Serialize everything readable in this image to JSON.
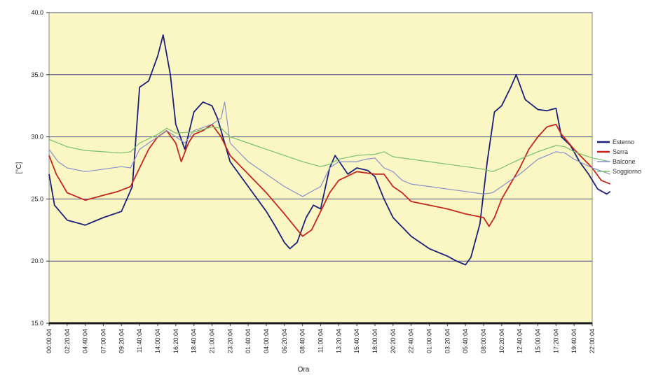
{
  "chart_data": {
    "type": "line",
    "xlabel": "Ora",
    "ylabel": "[°C]",
    "ylim": [
      15.0,
      40.0
    ],
    "y_ticks": [
      "15.0",
      "20.0",
      "25.0",
      "30.0",
      "35.0",
      "40.0"
    ],
    "grid": true,
    "legend_position": "right",
    "plot_background": "#fbf7c4",
    "x_tick_labels": [
      "00:00:04",
      "02:20:04",
      "04:40:04",
      "07:00:04",
      "09:20:04",
      "11:40:04",
      "14:00:04",
      "16:20:04",
      "18:40:04",
      "21:00:04",
      "23:20:04",
      "01:40:04",
      "04:00:04",
      "06:20:04",
      "08:40:04",
      "11:00:04",
      "13:20:04",
      "15:40:04",
      "18:00:04",
      "20:20:04",
      "22:40:04",
      "01:00:04",
      "03:20:04",
      "05:40:04",
      "08:00:04",
      "10:20:04",
      "12:40:04",
      "15:00:04",
      "17:20:04",
      "19:40:04",
      "22:00:04"
    ],
    "series": [
      {
        "name": "Esterno",
        "color": "#1c1f7a",
        "values": [
          [
            0,
            27.0
          ],
          [
            0.3,
            24.5
          ],
          [
            1,
            23.3
          ],
          [
            2,
            22.9
          ],
          [
            3,
            23.5
          ],
          [
            4,
            24.0
          ],
          [
            4.6,
            26.0
          ],
          [
            5,
            34.0
          ],
          [
            5.5,
            34.5
          ],
          [
            6,
            36.5
          ],
          [
            6.3,
            38.2
          ],
          [
            6.7,
            35.0
          ],
          [
            7,
            31.0
          ],
          [
            7.5,
            29.0
          ],
          [
            8,
            32.0
          ],
          [
            8.5,
            32.8
          ],
          [
            9,
            32.5
          ],
          [
            9.3,
            31.5
          ],
          [
            10,
            28.0
          ],
          [
            11,
            26.0
          ],
          [
            12,
            24.0
          ],
          [
            12.5,
            22.8
          ],
          [
            13,
            21.5
          ],
          [
            13.3,
            21.0
          ],
          [
            13.7,
            21.5
          ],
          [
            14.2,
            23.5
          ],
          [
            14.6,
            24.5
          ],
          [
            15,
            24.2
          ],
          [
            15.5,
            27.5
          ],
          [
            15.8,
            28.5
          ],
          [
            16.5,
            27.0
          ],
          [
            17,
            27.5
          ],
          [
            17.6,
            27.3
          ],
          [
            18,
            26.8
          ],
          [
            18.5,
            25.0
          ],
          [
            19,
            23.5
          ],
          [
            20,
            22.0
          ],
          [
            21,
            21.0
          ],
          [
            22,
            20.4
          ],
          [
            22.5,
            20.0
          ],
          [
            23,
            19.7
          ],
          [
            23.3,
            20.3
          ],
          [
            23.8,
            23.0
          ],
          [
            24.2,
            28.0
          ],
          [
            24.6,
            32.0
          ],
          [
            25,
            32.5
          ],
          [
            25.5,
            34.0
          ],
          [
            25.8,
            35.0
          ],
          [
            26.3,
            33.0
          ],
          [
            27,
            32.2
          ],
          [
            27.5,
            32.1
          ],
          [
            28,
            32.3
          ],
          [
            28.3,
            30.0
          ],
          [
            28.8,
            29.3
          ],
          [
            29.3,
            28.0
          ],
          [
            29.8,
            27.0
          ],
          [
            30.3,
            25.8
          ],
          [
            30.8,
            25.4
          ],
          [
            31,
            25.6
          ]
        ]
      },
      {
        "name": "Serra",
        "color": "#c2271c",
        "values": [
          [
            0,
            28.5
          ],
          [
            0.4,
            27.0
          ],
          [
            1,
            25.5
          ],
          [
            1.5,
            25.2
          ],
          [
            2,
            24.9
          ],
          [
            3,
            25.3
          ],
          [
            3.8,
            25.6
          ],
          [
            4.5,
            26.0
          ],
          [
            5,
            27.5
          ],
          [
            5.5,
            29.0
          ],
          [
            6,
            30.0
          ],
          [
            6.5,
            30.5
          ],
          [
            7,
            29.5
          ],
          [
            7.3,
            28.0
          ],
          [
            7.7,
            29.5
          ],
          [
            8,
            30.2
          ],
          [
            8.5,
            30.5
          ],
          [
            9,
            31.0
          ],
          [
            9.5,
            30.0
          ],
          [
            10,
            28.5
          ],
          [
            11,
            27.0
          ],
          [
            12,
            25.5
          ],
          [
            13,
            23.8
          ],
          [
            14,
            22.0
          ],
          [
            14.5,
            22.5
          ],
          [
            15,
            24.0
          ],
          [
            15.5,
            25.5
          ],
          [
            16,
            26.5
          ],
          [
            17,
            27.2
          ],
          [
            18,
            27.0
          ],
          [
            18.5,
            27.0
          ],
          [
            19,
            26.0
          ],
          [
            19.5,
            25.5
          ],
          [
            20,
            24.8
          ],
          [
            21,
            24.5
          ],
          [
            22,
            24.2
          ],
          [
            23,
            23.8
          ],
          [
            24,
            23.5
          ],
          [
            24.3,
            22.8
          ],
          [
            24.6,
            23.5
          ],
          [
            25,
            25.0
          ],
          [
            26,
            27.5
          ],
          [
            26.5,
            29.0
          ],
          [
            27,
            30.0
          ],
          [
            27.5,
            30.8
          ],
          [
            28,
            31.0
          ],
          [
            28.3,
            30.2
          ],
          [
            29,
            29.0
          ],
          [
            30,
            27.5
          ],
          [
            30.5,
            26.5
          ],
          [
            31,
            26.2
          ]
        ]
      },
      {
        "name": "Balcone",
        "color": "#8a90c8",
        "values": [
          [
            0,
            29.0
          ],
          [
            0.5,
            28.0
          ],
          [
            1,
            27.5
          ],
          [
            2,
            27.2
          ],
          [
            3,
            27.4
          ],
          [
            4,
            27.6
          ],
          [
            4.5,
            27.5
          ],
          [
            5,
            29.0
          ],
          [
            6,
            30.0
          ],
          [
            6.5,
            30.5
          ],
          [
            7,
            30.0
          ],
          [
            7.5,
            29.5
          ],
          [
            8,
            30.5
          ],
          [
            9,
            31.0
          ],
          [
            9.5,
            31.5
          ],
          [
            9.7,
            32.8
          ],
          [
            10,
            29.5
          ],
          [
            11,
            28.0
          ],
          [
            12,
            27.0
          ],
          [
            13,
            26.0
          ],
          [
            14,
            25.2
          ],
          [
            15,
            26.0
          ],
          [
            15.5,
            27.5
          ],
          [
            16,
            28.0
          ],
          [
            17,
            28.0
          ],
          [
            17.5,
            28.2
          ],
          [
            18,
            28.3
          ],
          [
            18.5,
            27.5
          ],
          [
            19,
            27.2
          ],
          [
            19.5,
            26.5
          ],
          [
            20,
            26.2
          ],
          [
            21,
            26.0
          ],
          [
            22,
            25.8
          ],
          [
            23,
            25.6
          ],
          [
            24,
            25.4
          ],
          [
            24.5,
            25.5
          ],
          [
            25,
            26.0
          ],
          [
            26,
            27.0
          ],
          [
            27,
            28.2
          ],
          [
            28,
            28.8
          ],
          [
            28.5,
            28.7
          ],
          [
            29,
            28.2
          ],
          [
            30,
            27.5
          ],
          [
            31,
            27.0
          ]
        ]
      },
      {
        "name": "Soggiorno",
        "color": "#78bf6c",
        "values": [
          [
            0,
            29.8
          ],
          [
            1,
            29.2
          ],
          [
            2,
            28.9
          ],
          [
            3,
            28.8
          ],
          [
            4,
            28.7
          ],
          [
            4.5,
            28.8
          ],
          [
            5,
            29.5
          ],
          [
            6,
            30.2
          ],
          [
            6.5,
            30.7
          ],
          [
            7,
            30.3
          ],
          [
            8,
            30.4
          ],
          [
            9,
            30.8
          ],
          [
            9.5,
            30.7
          ],
          [
            10,
            30.0
          ],
          [
            11,
            29.5
          ],
          [
            12,
            29.0
          ],
          [
            13,
            28.5
          ],
          [
            14,
            28.0
          ],
          [
            15,
            27.6
          ],
          [
            15.5,
            27.8
          ],
          [
            16,
            28.2
          ],
          [
            17,
            28.5
          ],
          [
            18,
            28.6
          ],
          [
            18.5,
            28.8
          ],
          [
            19,
            28.4
          ],
          [
            20,
            28.2
          ],
          [
            21,
            28.0
          ],
          [
            22,
            27.8
          ],
          [
            23,
            27.6
          ],
          [
            24,
            27.4
          ],
          [
            24.5,
            27.2
          ],
          [
            25,
            27.5
          ],
          [
            26,
            28.2
          ],
          [
            27,
            28.8
          ],
          [
            28,
            29.3
          ],
          [
            28.5,
            29.2
          ],
          [
            29,
            28.8
          ],
          [
            30,
            28.3
          ],
          [
            31,
            28.0
          ]
        ]
      }
    ]
  }
}
